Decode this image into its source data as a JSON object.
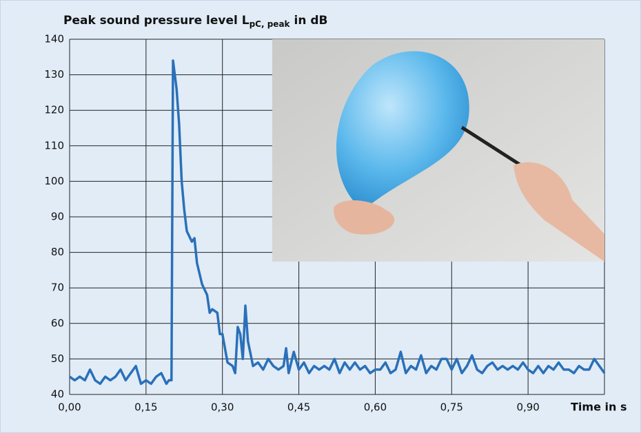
{
  "chart_data": {
    "type": "line",
    "title": "Peak sound pressure level L",
    "title_subscript": "pC, peak",
    "title_suffix": "in dB",
    "x_label": "Time in s",
    "x": [
      0.0,
      0.01,
      0.02,
      0.03,
      0.04,
      0.05,
      0.06,
      0.07,
      0.08,
      0.09,
      0.1,
      0.11,
      0.12,
      0.13,
      0.14,
      0.15,
      0.16,
      0.17,
      0.18,
      0.19,
      0.195,
      0.2,
      0.203,
      0.21,
      0.215,
      0.22,
      0.225,
      0.23,
      0.24,
      0.245,
      0.25,
      0.26,
      0.27,
      0.275,
      0.28,
      0.29,
      0.295,
      0.3,
      0.31,
      0.32,
      0.325,
      0.33,
      0.335,
      0.34,
      0.345,
      0.35,
      0.36,
      0.37,
      0.38,
      0.39,
      0.4,
      0.41,
      0.42,
      0.425,
      0.43,
      0.44,
      0.45,
      0.46,
      0.47,
      0.48,
      0.49,
      0.5,
      0.51,
      0.52,
      0.53,
      0.54,
      0.55,
      0.56,
      0.57,
      0.58,
      0.59,
      0.6,
      0.61,
      0.62,
      0.63,
      0.64,
      0.65,
      0.66,
      0.67,
      0.68,
      0.69,
      0.7,
      0.71,
      0.72,
      0.73,
      0.74,
      0.75,
      0.76,
      0.77,
      0.78,
      0.79,
      0.8,
      0.81,
      0.82,
      0.83,
      0.84,
      0.85,
      0.86,
      0.87,
      0.88,
      0.89,
      0.9,
      0.91,
      0.92,
      0.93,
      0.94,
      0.95,
      0.96,
      0.97,
      0.98,
      0.99,
      1.0,
      1.01,
      1.02,
      1.03,
      1.04,
      1.05
    ],
    "values": [
      45,
      44,
      45,
      44,
      47,
      44,
      43,
      45,
      44,
      45,
      47,
      44,
      46,
      48,
      43,
      44,
      43,
      45,
      46,
      43,
      44,
      44,
      134,
      126,
      116,
      100,
      92,
      86,
      83,
      84,
      77,
      71,
      68,
      63,
      64,
      63,
      57,
      57,
      49,
      48,
      46,
      59,
      57,
      50,
      65,
      55,
      48,
      49,
      47,
      50,
      48,
      47,
      48,
      53,
      46,
      52,
      47,
      49,
      46,
      48,
      47,
      48,
      47,
      50,
      46,
      49,
      47,
      49,
      47,
      48,
      46,
      47,
      47,
      49,
      46,
      47,
      52,
      46,
      48,
      47,
      51,
      46,
      48,
      47,
      50,
      50,
      47,
      50,
      46,
      48,
      51,
      47,
      46,
      48,
      49,
      47,
      48,
      47,
      48,
      47,
      49,
      47,
      46,
      48,
      46,
      48,
      47,
      49,
      47,
      47,
      46,
      48,
      47,
      47,
      50,
      48,
      46
    ],
    "color": "#2a70b8",
    "xlim": [
      0,
      1.05
    ],
    "xticks": [
      {
        "value": 0,
        "label": "0,00"
      },
      {
        "value": 0.15,
        "label": "0,15"
      },
      {
        "value": 0.3,
        "label": "0,30"
      },
      {
        "value": 0.45,
        "label": "0,45"
      },
      {
        "value": 0.6,
        "label": "0,60"
      },
      {
        "value": 0.75,
        "label": "0,75"
      },
      {
        "value": 0.9,
        "label": "0,90"
      }
    ],
    "ylim": [
      40,
      140
    ],
    "yticks": [
      40,
      50,
      60,
      70,
      80,
      90,
      100,
      110,
      120,
      130,
      140
    ],
    "grid": true
  }
}
